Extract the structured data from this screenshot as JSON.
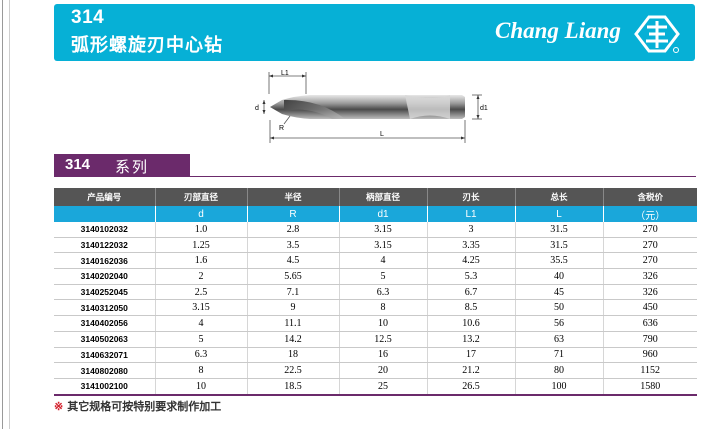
{
  "header": {
    "code": "314",
    "name": "弧形螺旋刃中心钻",
    "brand": "Chang Liang"
  },
  "drawing": {
    "label_l1": "L1",
    "label_d": "d",
    "label_d1": "d1",
    "label_r": "R",
    "label_l": "L"
  },
  "series": {
    "code": "314",
    "name": "系列"
  },
  "table": {
    "headers": [
      "产品编号",
      "刃部直径",
      "半径",
      "柄部直径",
      "刃长",
      "总长",
      "含税价"
    ],
    "symbols": [
      "",
      "d",
      "R",
      "d1",
      "L1",
      "L",
      "（元）"
    ],
    "rows": [
      [
        "3140102032",
        "1.0",
        "2.8",
        "3.15",
        "3",
        "31.5",
        "270"
      ],
      [
        "3140122032",
        "1.25",
        "3.5",
        "3.15",
        "3.35",
        "31.5",
        "270"
      ],
      [
        "3140162036",
        "1.6",
        "4.5",
        "4",
        "4.25",
        "35.5",
        "270"
      ],
      [
        "3140202040",
        "2",
        "5.65",
        "5",
        "5.3",
        "40",
        "326"
      ],
      [
        "3140252045",
        "2.5",
        "7.1",
        "6.3",
        "6.7",
        "45",
        "326"
      ],
      [
        "3140312050",
        "3.15",
        "9",
        "8",
        "8.5",
        "50",
        "450"
      ],
      [
        "3140402056",
        "4",
        "11.1",
        "10",
        "10.6",
        "56",
        "636"
      ],
      [
        "3140502063",
        "5",
        "14.2",
        "12.5",
        "13.2",
        "63",
        "790"
      ],
      [
        "3140632071",
        "6.3",
        "18",
        "16",
        "17",
        "71",
        "960"
      ],
      [
        "3140802080",
        "8",
        "22.5",
        "20",
        "21.2",
        "80",
        "1152"
      ],
      [
        "3141002100",
        "10",
        "18.5",
        "25",
        "26.5",
        "100",
        "1580"
      ]
    ]
  },
  "footnote": {
    "mark": "※",
    "text": "其它规格可按特别要求制作加工"
  },
  "colors": {
    "banner": "#06b0d6",
    "series": "#6b2a6b",
    "table_header": "#555555",
    "symbol_row": "#1aa7da"
  }
}
